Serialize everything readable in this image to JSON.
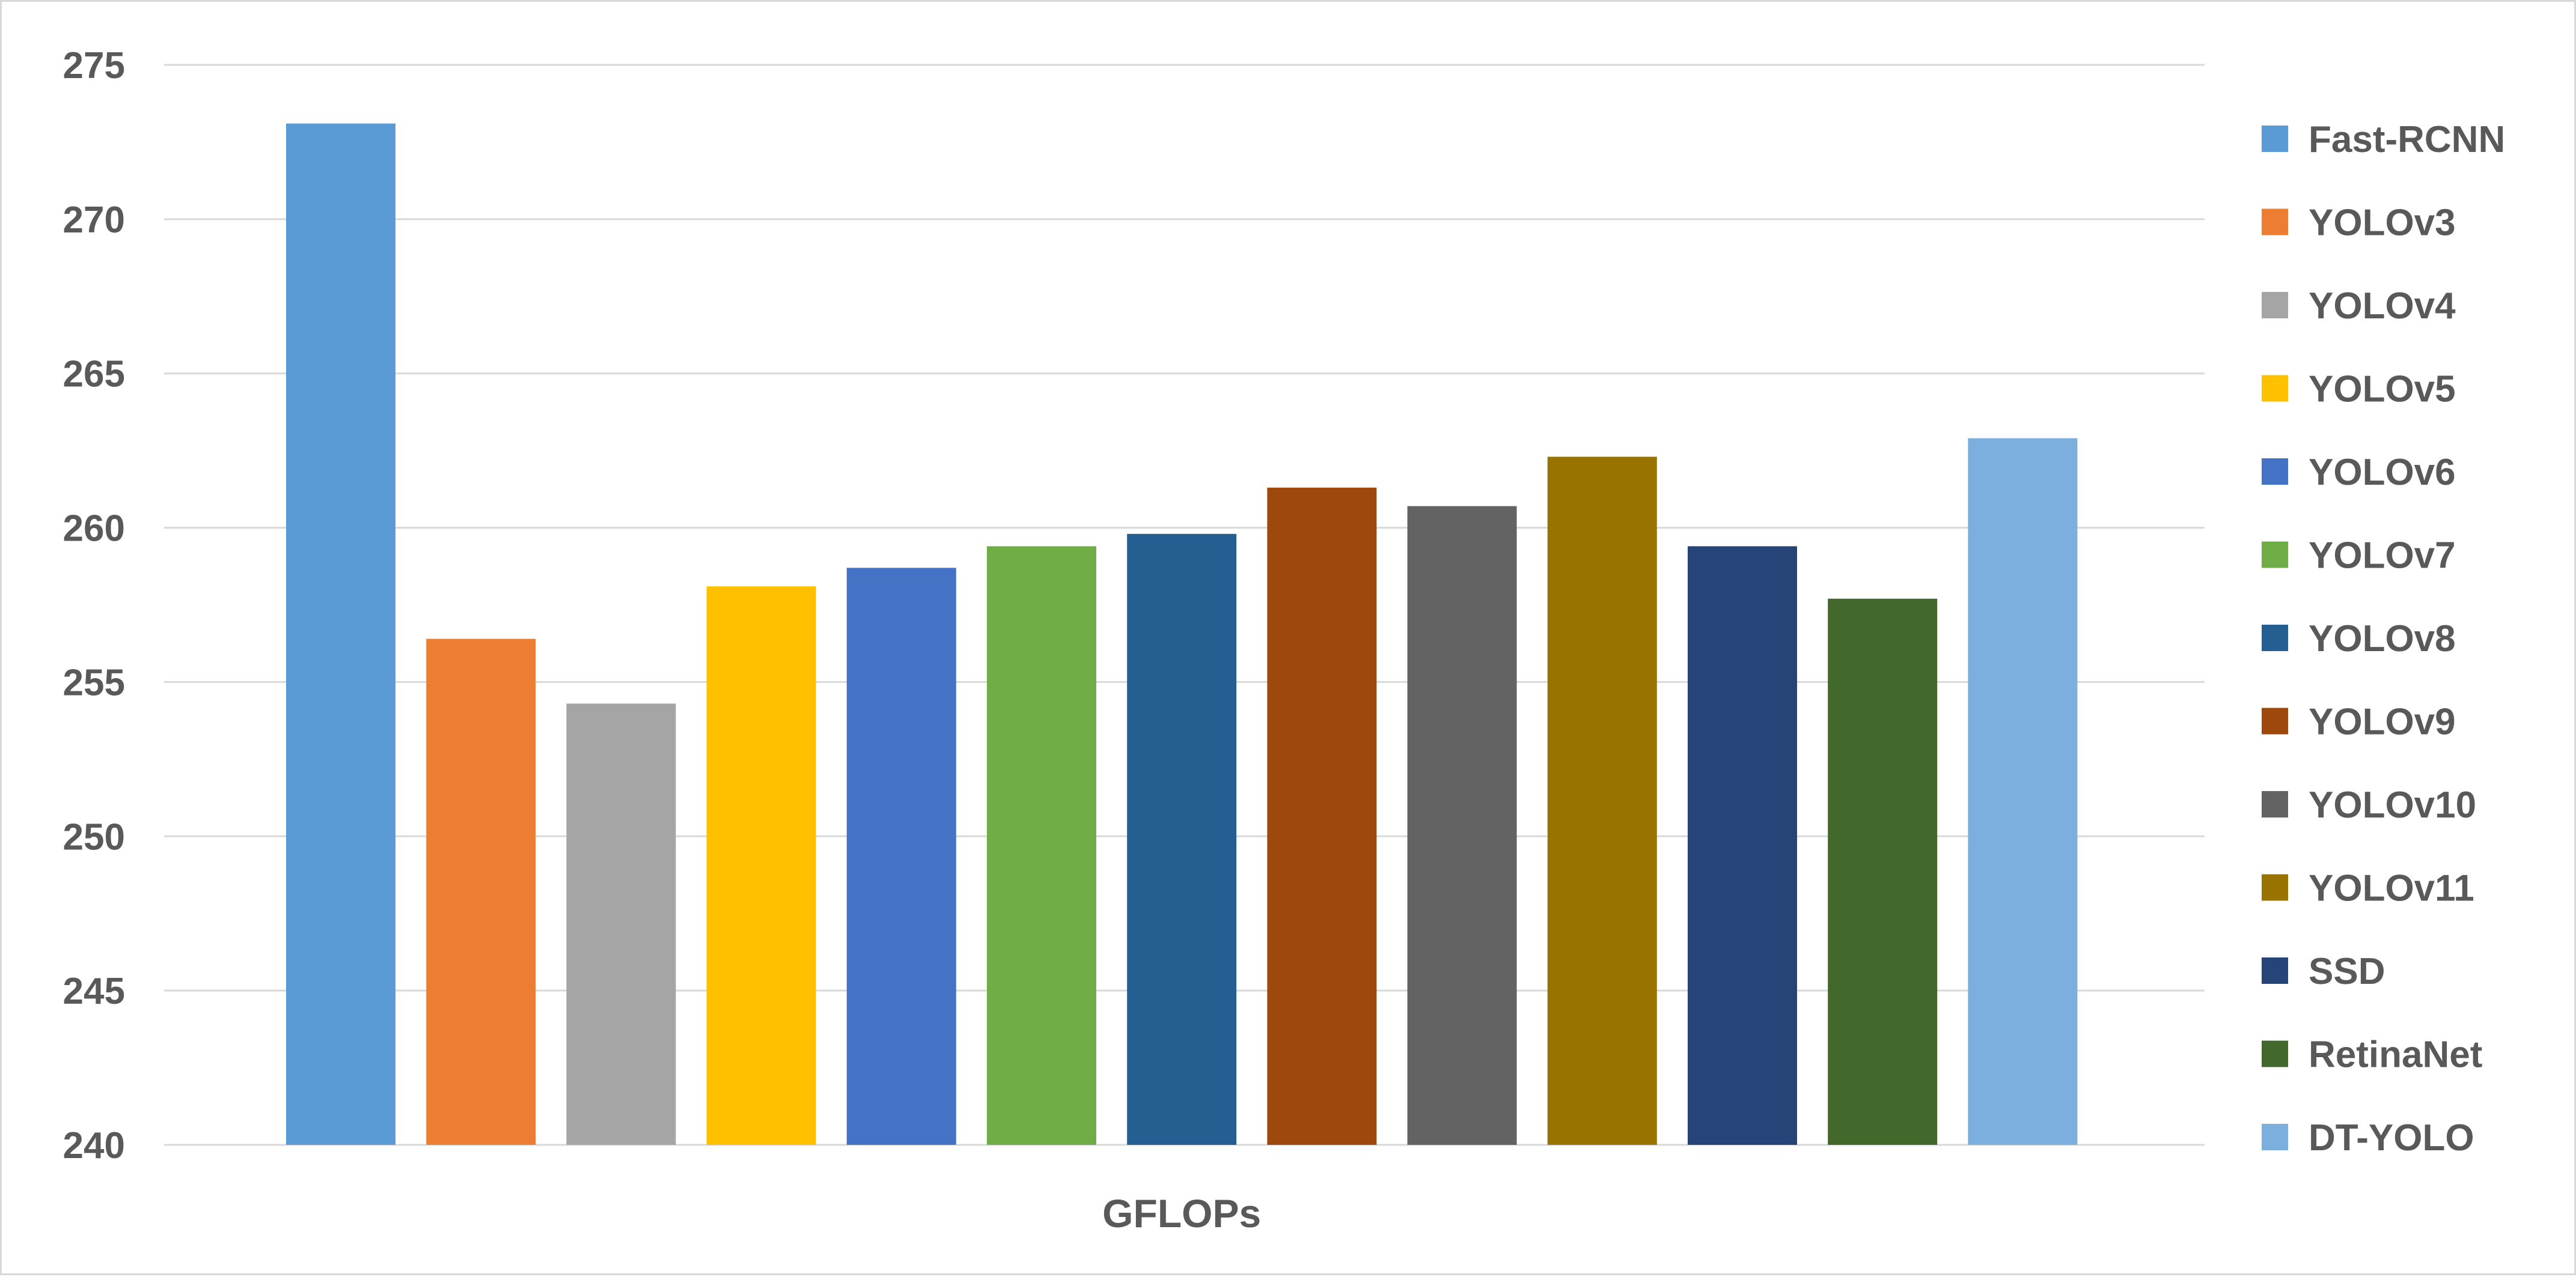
{
  "chart_data": {
    "type": "bar",
    "title": "",
    "xlabel": "GFLOPs",
    "ylabel": "",
    "ylim": [
      240,
      275
    ],
    "yticks": [
      240,
      245,
      250,
      255,
      260,
      265,
      270,
      275
    ],
    "grid": true,
    "legend_position": "right",
    "categories": [
      "GFLOPs"
    ],
    "series": [
      {
        "name": "Fast-RCNN",
        "values": [
          273.1
        ],
        "color": "#5B9BD5"
      },
      {
        "name": "YOLOv3",
        "values": [
          256.4
        ],
        "color": "#ED7D31"
      },
      {
        "name": "YOLOv4",
        "values": [
          254.3
        ],
        "color": "#A5A5A5"
      },
      {
        "name": "YOLOv5",
        "values": [
          258.1
        ],
        "color": "#FFC000"
      },
      {
        "name": "YOLOv6",
        "values": [
          258.7
        ],
        "color": "#4472C4"
      },
      {
        "name": "YOLOv7",
        "values": [
          259.4
        ],
        "color": "#70AD47"
      },
      {
        "name": "YOLOv8",
        "values": [
          259.8
        ],
        "color": "#255E91"
      },
      {
        "name": "YOLOv9",
        "values": [
          261.3
        ],
        "color": "#9E480E"
      },
      {
        "name": "YOLOv10",
        "values": [
          260.7
        ],
        "color": "#636363"
      },
      {
        "name": "YOLOv11",
        "values": [
          262.3
        ],
        "color": "#997300"
      },
      {
        "name": "SSD",
        "values": [
          259.4
        ],
        "color": "#264478"
      },
      {
        "name": "RetinaNet",
        "values": [
          257.7
        ],
        "color": "#43682B"
      },
      {
        "name": "DT-YOLO",
        "values": [
          262.9
        ],
        "color": "#7CAFDD"
      }
    ]
  },
  "colors": {
    "gridline": "#d9d9d9",
    "text": "#595959",
    "frame": "#d9d9d9"
  }
}
